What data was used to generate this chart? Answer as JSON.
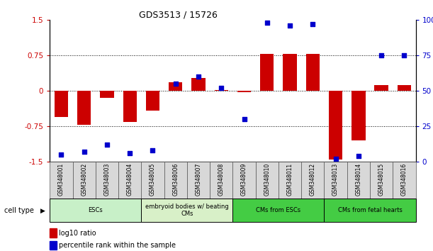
{
  "title": "GDS3513 / 15726",
  "samples": [
    "GSM348001",
    "GSM348002",
    "GSM348003",
    "GSM348004",
    "GSM348005",
    "GSM348006",
    "GSM348007",
    "GSM348008",
    "GSM348009",
    "GSM348010",
    "GSM348011",
    "GSM348012",
    "GSM348013",
    "GSM348014",
    "GSM348015",
    "GSM348016"
  ],
  "log10_ratio": [
    -0.55,
    -0.72,
    -0.15,
    -0.65,
    -0.42,
    0.18,
    0.28,
    0.02,
    -0.02,
    0.78,
    0.78,
    0.78,
    -1.45,
    -1.05,
    0.12,
    0.12
  ],
  "percentile_rank": [
    5,
    7,
    12,
    6,
    8,
    55,
    60,
    52,
    30,
    98,
    96,
    97,
    2,
    4,
    75,
    75
  ],
  "bar_color": "#cc0000",
  "dot_color": "#0000cc",
  "ylim_left": [
    -1.5,
    1.5
  ],
  "ylim_right": [
    0,
    100
  ],
  "yticks_left": [
    -1.5,
    -0.75,
    0,
    0.75,
    1.5
  ],
  "ytick_labels_left": [
    "-1.5",
    "-0.75",
    "0",
    "0.75",
    "1.5"
  ],
  "yticks_right": [
    0,
    25,
    50,
    75,
    100
  ],
  "ytick_labels_right": [
    "0",
    "25",
    "50",
    "75",
    "100%"
  ],
  "dotted_lines": [
    -0.75,
    0,
    0.75
  ],
  "ct_boundaries": [
    [
      0,
      4,
      "ESCs",
      "#c8f0c8"
    ],
    [
      4,
      8,
      "embryoid bodies w/ beating\nCMs",
      "#d8f0c8"
    ],
    [
      8,
      12,
      "CMs from ESCs",
      "#44cc44"
    ],
    [
      12,
      16,
      "CMs from fetal hearts",
      "#44cc44"
    ]
  ],
  "legend_items": [
    {
      "color": "#cc0000",
      "label": "log10 ratio"
    },
    {
      "color": "#0000cc",
      "label": "percentile rank within the sample"
    }
  ]
}
